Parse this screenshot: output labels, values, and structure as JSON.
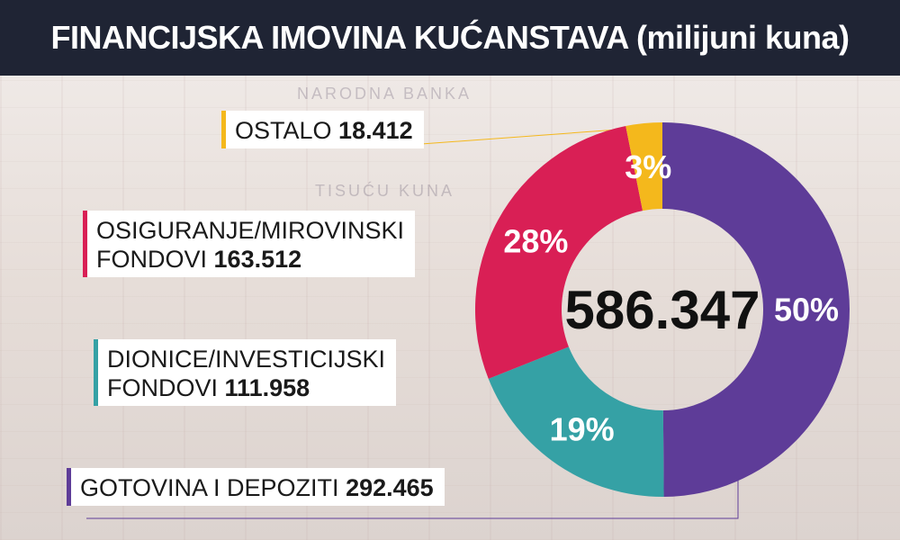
{
  "title": "FINANCIJSKA IMOVINA KUĆANSTAVA (milijuni kuna)",
  "colors": {
    "header_bg": "#1f2434",
    "gotovina": "#5e3c98",
    "dionice": "#35a1a5",
    "osiguranje": "#d91f55",
    "ostalo": "#f4b81c"
  },
  "chart_data": {
    "type": "pie",
    "style": "donut",
    "title": "FINANCIJSKA IMOVINA KUĆANSTAVA (milijuni kuna)",
    "total_label": "586.347",
    "total": 586347,
    "slices": [
      {
        "name": "GOTOVINA I DEPOZITI",
        "value": 292465,
        "value_label": "292.465",
        "percent_label": "50%",
        "color": "#5e3c98"
      },
      {
        "name": "DIONICE/INVESTICIJSKI FONDOVI",
        "name_line1": "DIONICE/INVESTICIJSKI",
        "name_line2": "FONDOVI",
        "value": 111958,
        "value_label": "111.958",
        "percent_label": "19%",
        "color": "#35a1a5"
      },
      {
        "name": "OSIGURANJE/MIROVINSKI FONDOVI",
        "name_line1": "OSIGURANJE/MIROVINSKI",
        "name_line2": "FONDOVI",
        "value": 163512,
        "value_label": "163.512",
        "percent_label": "28%",
        "color": "#d91f55"
      },
      {
        "name": "OSTALO",
        "value": 18412,
        "value_label": "18.412",
        "percent_label": "3%",
        "color": "#f4b81c"
      }
    ]
  }
}
